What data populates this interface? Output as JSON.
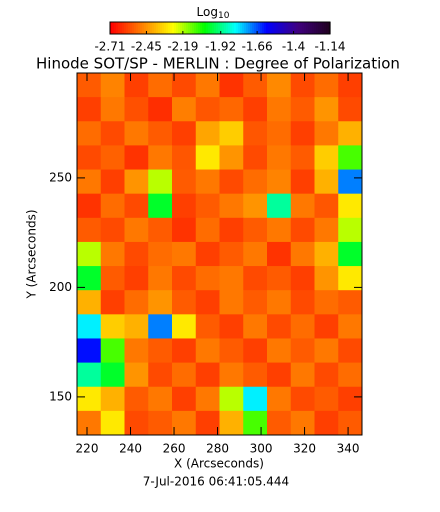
{
  "chart_data": {
    "type": "heatmap",
    "colorbar_label": "Log",
    "colorbar_label_sub": "10",
    "title": "Hinode SOT/SP - MERLIN : Degree of Polarization",
    "xlabel": "X (Arcseconds)",
    "ylabel": "Y (Arcseconds)",
    "footer": "7-Jul-2016 06:41:05.444",
    "xlim": [
      215.4,
      346.4
    ],
    "ylim": [
      132.6,
      297.9
    ],
    "xticks": [
      220,
      240,
      260,
      280,
      300,
      320,
      340
    ],
    "yticks": [
      150,
      200,
      250
    ],
    "clim": [
      -2.71,
      -1.14
    ],
    "colorbar_ticks": [
      -2.71,
      -2.45,
      -2.19,
      -1.92,
      -1.66,
      -1.4,
      -1.14
    ],
    "colormap": [
      "#ff0000",
      "#ff8000",
      "#ffff00",
      "#00ff00",
      "#00ffff",
      "#0000ff",
      "#400080",
      "#200020"
    ],
    "z": [
      [
        -2.55,
        -2.48,
        -2.6,
        -2.52,
        -2.58,
        -2.5,
        -2.62,
        -2.55,
        -2.47,
        -2.58,
        -2.52,
        -2.6
      ],
      [
        -2.6,
        -2.5,
        -2.57,
        -2.63,
        -2.49,
        -2.56,
        -2.53,
        -2.6,
        -2.5,
        -2.55,
        -2.45,
        -2.58
      ],
      [
        -2.52,
        -2.58,
        -2.5,
        -2.55,
        -2.6,
        -2.42,
        -2.35,
        -2.56,
        -2.52,
        -2.6,
        -2.5,
        -2.4
      ],
      [
        -2.58,
        -2.54,
        -2.62,
        -2.5,
        -2.56,
        -2.3,
        -2.45,
        -2.58,
        -2.5,
        -2.55,
        -2.35,
        -2.1
      ],
      [
        -2.5,
        -2.6,
        -2.45,
        -2.2,
        -2.55,
        -2.5,
        -2.58,
        -2.52,
        -2.48,
        -2.6,
        -2.4,
        -1.7
      ],
      [
        -2.62,
        -2.52,
        -2.58,
        -2.0,
        -2.6,
        -2.55,
        -2.5,
        -2.45,
        -1.9,
        -2.5,
        -2.56,
        -2.3
      ],
      [
        -2.55,
        -2.58,
        -2.5,
        -2.55,
        -2.62,
        -2.52,
        -2.6,
        -2.55,
        -2.5,
        -2.58,
        -2.5,
        -2.2
      ],
      [
        -2.2,
        -2.5,
        -2.58,
        -2.52,
        -2.5,
        -2.6,
        -2.55,
        -2.5,
        -2.62,
        -2.5,
        -2.4,
        -2.0
      ],
      [
        -2.0,
        -2.55,
        -2.6,
        -2.5,
        -2.58,
        -2.52,
        -2.5,
        -2.58,
        -2.55,
        -2.6,
        -2.45,
        -2.3
      ],
      [
        -2.4,
        -2.6,
        -2.52,
        -2.45,
        -2.55,
        -2.6,
        -2.5,
        -2.55,
        -2.5,
        -2.58,
        -2.52,
        -2.55
      ],
      [
        -1.8,
        -2.35,
        -2.4,
        -1.7,
        -2.3,
        -2.55,
        -2.6,
        -2.5,
        -2.58,
        -2.52,
        -2.6,
        -2.5
      ],
      [
        -1.6,
        -2.1,
        -2.5,
        -2.55,
        -2.6,
        -2.5,
        -2.55,
        -2.6,
        -2.5,
        -2.55,
        -2.5,
        -2.58
      ],
      [
        -1.9,
        -2.0,
        -2.45,
        -2.58,
        -2.52,
        -2.6,
        -2.5,
        -2.55,
        -2.6,
        -2.5,
        -2.58,
        -2.52
      ],
      [
        -2.3,
        -2.4,
        -2.55,
        -2.5,
        -2.6,
        -2.5,
        -2.2,
        -1.8,
        -2.5,
        -2.58,
        -2.55,
        -2.6
      ],
      [
        -2.5,
        -2.3,
        -2.58,
        -2.55,
        -2.5,
        -2.6,
        -2.4,
        -2.1,
        -2.55,
        -2.5,
        -2.6,
        -2.55
      ]
    ]
  }
}
